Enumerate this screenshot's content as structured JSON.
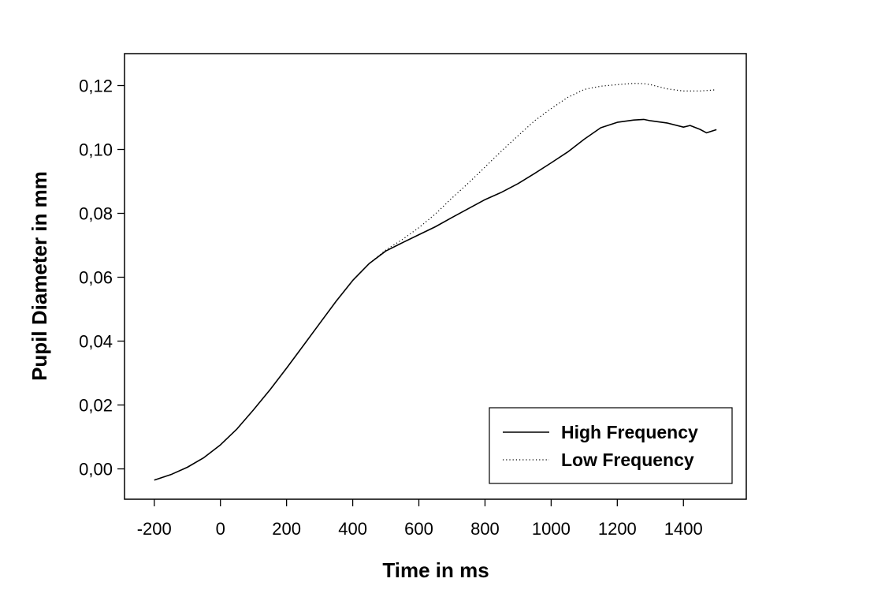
{
  "chart_data": {
    "type": "line",
    "title": "",
    "xlabel": "Time in ms",
    "ylabel": "Pupil Diameter in mm",
    "xlim": [
      -290,
      1590
    ],
    "ylim": [
      -0.0095,
      0.13
    ],
    "xticks": [
      -200,
      0,
      200,
      400,
      600,
      800,
      1000,
      1200,
      1400
    ],
    "xtick_labels": [
      "-200",
      "0",
      "200",
      "400",
      "600",
      "800",
      "1000",
      "1200",
      "1400"
    ],
    "yticks": [
      0,
      0.02,
      0.04,
      0.06,
      0.08,
      0.1,
      0.12
    ],
    "ytick_labels": [
      "0,00",
      "0,02",
      "0,04",
      "0,06",
      "0,08",
      "0,10",
      "0,12"
    ],
    "grid": false,
    "legend_position": "bottom-right",
    "series": [
      {
        "name": "High Frequency",
        "style": "solid",
        "color": "#000000",
        "x": [
          -200,
          -150,
          -100,
          -50,
          0,
          50,
          100,
          150,
          200,
          250,
          300,
          350,
          400,
          450,
          500,
          550,
          600,
          650,
          700,
          750,
          800,
          850,
          900,
          950,
          1000,
          1050,
          1100,
          1150,
          1200,
          1250,
          1280,
          1300,
          1350,
          1400,
          1420,
          1450,
          1470,
          1500
        ],
        "y": [
          -0.0035,
          -0.0018,
          0.0005,
          0.0035,
          0.0075,
          0.0125,
          0.0185,
          0.0248,
          0.0315,
          0.0385,
          0.0455,
          0.0525,
          0.059,
          0.0643,
          0.0682,
          0.0708,
          0.0733,
          0.0758,
          0.0787,
          0.0815,
          0.0843,
          0.0866,
          0.0893,
          0.0925,
          0.0958,
          0.0992,
          0.1032,
          0.1068,
          0.1085,
          0.1092,
          0.1094,
          0.109,
          0.1083,
          0.107,
          0.1075,
          0.1063,
          0.1052,
          0.1062
        ]
      },
      {
        "name": "Low Frequency",
        "style": "dotted",
        "color": "#000000",
        "x": [
          -200,
          -150,
          -100,
          -50,
          0,
          50,
          100,
          150,
          200,
          250,
          300,
          350,
          400,
          450,
          500,
          550,
          600,
          650,
          700,
          750,
          800,
          850,
          900,
          950,
          1000,
          1050,
          1100,
          1150,
          1200,
          1250,
          1280,
          1300,
          1350,
          1400,
          1450,
          1500
        ],
        "y": [
          -0.0035,
          -0.0018,
          0.0005,
          0.0035,
          0.0075,
          0.0125,
          0.0185,
          0.0248,
          0.0315,
          0.0385,
          0.0455,
          0.0525,
          0.059,
          0.0643,
          0.0685,
          0.0718,
          0.0755,
          0.0798,
          0.0848,
          0.0895,
          0.0945,
          0.0995,
          0.1043,
          0.109,
          0.1128,
          0.1163,
          0.1188,
          0.1198,
          0.1203,
          0.1207,
          0.1206,
          0.1203,
          0.119,
          0.1183,
          0.1183,
          0.1187
        ]
      }
    ]
  }
}
